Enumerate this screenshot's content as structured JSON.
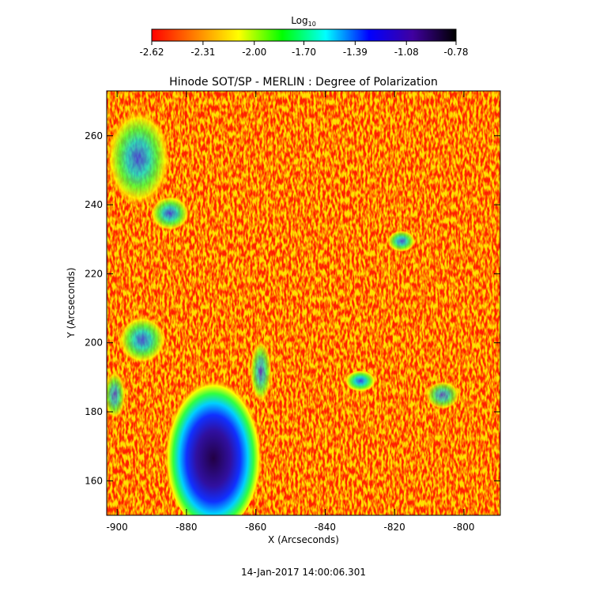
{
  "chart_data": {
    "type": "heatmap",
    "title": "Hinode SOT/SP - MERLIN : Degree of Polarization",
    "xlabel": "X (Arcseconds)",
    "ylabel": "Y (Arcseconds)",
    "xlim": [
      -903,
      -789.5
    ],
    "ylim": [
      150,
      273
    ],
    "xticks": [
      -900,
      -880,
      -860,
      -840,
      -820,
      -800
    ],
    "yticks": [
      160,
      180,
      200,
      220,
      240,
      260
    ],
    "colorbar": {
      "label": "Log",
      "label_sub": "10",
      "lim": [
        -2.62,
        -0.78
      ],
      "ticks": [
        -2.62,
        -2.31,
        {
          "value": -2,
          "label": "-2.00"
        },
        {
          "value": -1.7,
          "label": "-1.70"
        },
        -1.39,
        -1.08,
        -0.78
      ],
      "colors": [
        "#ff0000",
        "#ff8000",
        "#ffff00",
        "#00ff00",
        "#00ffff",
        "#0000ff",
        "#4000a0",
        "#000000"
      ]
    },
    "footer": "14-Jan-2017 14:00:06.301"
  }
}
